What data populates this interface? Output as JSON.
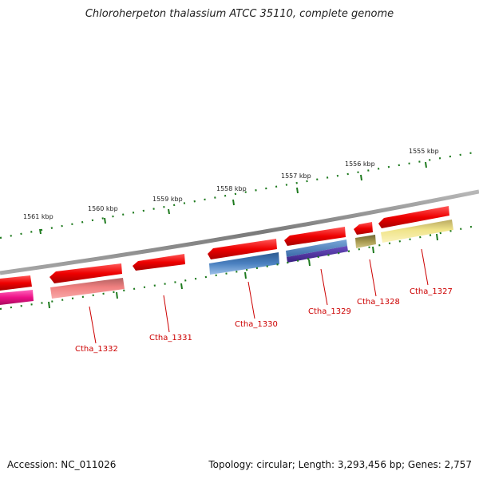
{
  "title": "Chloroherpeton thalassium ATCC 35110, complete genome",
  "footer": {
    "accession": "Accession: NC_011026",
    "summary": "Topology: circular; Length: 3,293,456 bp; Genes: 2,757"
  },
  "ticks": [
    "1561 kbp",
    "1560 kbp",
    "1559 kbp",
    "1558 kbp",
    "1557 kbp",
    "1556 kbp",
    "1555 kbp"
  ],
  "gene_labels": [
    "Ctha_1332",
    "Ctha_1331",
    "Ctha_1330",
    "Ctha_1329",
    "Ctha_1328",
    "Ctha_1327"
  ],
  "colors": {
    "cds": "#ee0000",
    "backbone": "#8a8a8a",
    "tick": "#1e7a1e",
    "label": "#cc0000",
    "feature_pink": "#ee1188",
    "feature_salmon": "#f08080",
    "feature_blue": "#4a80c0",
    "feature_purple": "#4b2e9a",
    "feature_olive": "#a89a50",
    "feature_yellow": "#f0e48a"
  }
}
